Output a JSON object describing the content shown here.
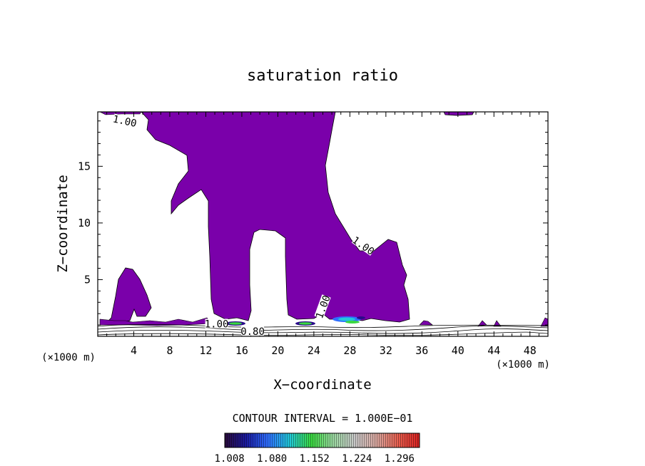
{
  "chart_data": {
    "type": "heatmap",
    "title": "saturation ratio",
    "xlabel": "X−coordinate",
    "ylabel": "Z−coordinate",
    "x_unit_label": "(×1000 m)",
    "y_unit_label": "(×1000 m)",
    "xlim": [
      0,
      50
    ],
    "ylim": [
      0,
      19.8
    ],
    "x_ticks": [
      4,
      8,
      12,
      16,
      20,
      24,
      28,
      32,
      36,
      40,
      44,
      48
    ],
    "y_ticks": [
      5,
      10,
      15
    ],
    "fill_color": "#7a00aa",
    "contour_labels": [
      {
        "text": "1.00",
        "x": 3.0,
        "y": 19.0,
        "angle": 12
      },
      {
        "text": "1.00",
        "x": 29.5,
        "y": 8.0,
        "angle": 35
      },
      {
        "text": "1.00",
        "x": 25.0,
        "y": 2.6,
        "angle": -70
      },
      {
        "text": "1.00",
        "x": 13.2,
        "y": 1.1,
        "angle": 0
      },
      {
        "text": "0.80",
        "x": 17.2,
        "y": 0.45,
        "angle": 0
      }
    ],
    "contour_interval_text": "CONTOUR INTERVAL = 1.000E−01",
    "colorbar": {
      "tick_labels": [
        "1.008",
        "1.080",
        "1.152",
        "1.224",
        "1.296"
      ],
      "range": [
        1.0,
        1.33
      ],
      "colors": [
        "#2a0a3a",
        "#1a1aa0",
        "#2f6fff",
        "#22c8d8",
        "#3ad840",
        "#9ad8a0",
        "#c8c8c8",
        "#d8a8a0",
        "#e86050",
        "#d82020"
      ]
    }
  }
}
